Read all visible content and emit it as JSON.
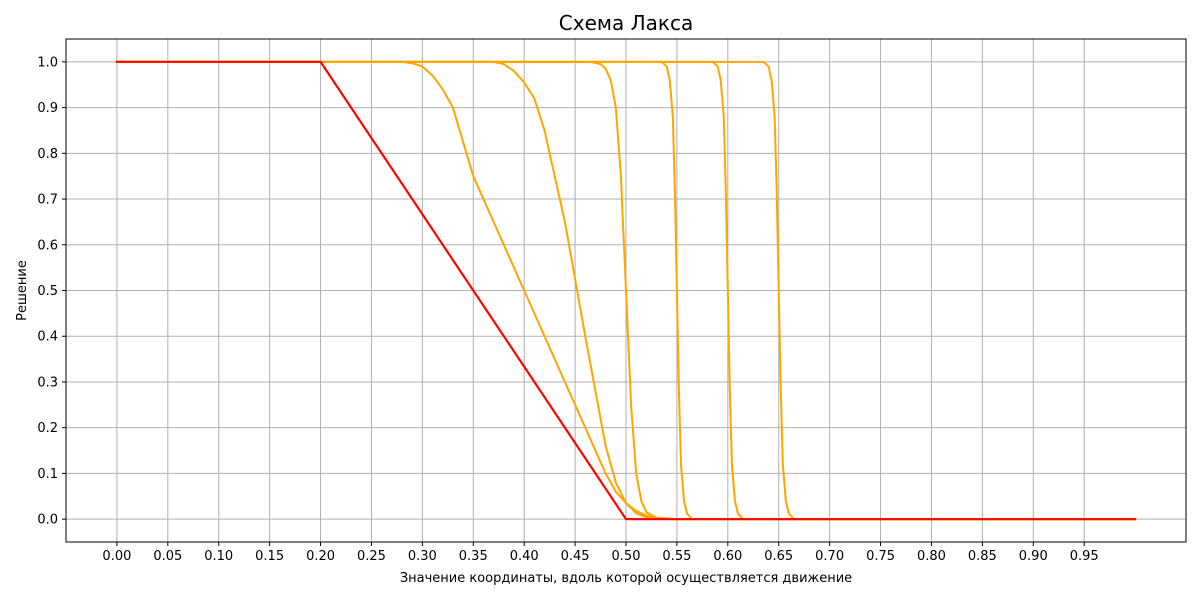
{
  "chart_data": {
    "type": "line",
    "title": "Схема Лакса",
    "xlabel": "Значение координаты, вдоль которой осуществляется движение",
    "ylabel": "Решение",
    "xlim": [
      -0.05,
      1.05
    ],
    "ylim": [
      -0.05,
      1.05
    ],
    "xticks": [
      0.0,
      0.05,
      0.1,
      0.15,
      0.2,
      0.25,
      0.3,
      0.35,
      0.4,
      0.45,
      0.5,
      0.55,
      0.6,
      0.65,
      0.7,
      0.75,
      0.8,
      0.85,
      0.9,
      0.95
    ],
    "xtick_labels": [
      "0.00",
      "0.05",
      "0.10",
      "0.15",
      "0.20",
      "0.25",
      "0.30",
      "0.35",
      "0.40",
      "0.45",
      "0.50",
      "0.55",
      "0.60",
      "0.65",
      "0.70",
      "0.75",
      "0.80",
      "0.85",
      "0.90",
      "0.95"
    ],
    "yticks": [
      0.0,
      0.1,
      0.2,
      0.3,
      0.4,
      0.5,
      0.6,
      0.7,
      0.8,
      0.9,
      1.0
    ],
    "ytick_labels": [
      "0.0",
      "0.1",
      "0.2",
      "0.3",
      "0.4",
      "0.5",
      "0.6",
      "0.7",
      "0.8",
      "0.9",
      "1.0"
    ],
    "grid": true,
    "legend": "none",
    "series": [
      {
        "color": "#ff0000",
        "x": [
          0.0,
          0.2,
          0.5,
          1.0
        ],
        "y": [
          1.0,
          1.0,
          0.0,
          0.0
        ]
      },
      {
        "color": "#ffa500",
        "x": [
          0.0,
          0.28,
          0.29,
          0.3,
          0.31,
          0.32,
          0.33,
          0.35,
          0.4,
          0.45,
          0.47,
          0.48,
          0.49,
          0.5,
          0.51,
          0.52,
          0.53,
          0.55,
          0.6,
          1.0
        ],
        "y": [
          1.0,
          1.0,
          0.997,
          0.99,
          0.97,
          0.94,
          0.9,
          0.75,
          0.5,
          0.25,
          0.15,
          0.1,
          0.06,
          0.035,
          0.018,
          0.008,
          0.003,
          0.0,
          0.0,
          0.0
        ]
      },
      {
        "color": "#ffa500",
        "x": [
          0.0,
          0.37,
          0.38,
          0.39,
          0.4,
          0.41,
          0.42,
          0.44,
          0.46,
          0.48,
          0.49,
          0.5,
          0.51,
          0.52,
          0.53,
          0.55,
          0.6,
          1.0
        ],
        "y": [
          1.0,
          1.0,
          0.995,
          0.98,
          0.955,
          0.92,
          0.85,
          0.65,
          0.4,
          0.16,
          0.08,
          0.035,
          0.013,
          0.004,
          0.001,
          0.0,
          0.0,
          1e-09
        ]
      },
      {
        "color": "#ffa500",
        "x": [
          0.0,
          0.465,
          0.475,
          0.48,
          0.485,
          0.49,
          0.495,
          0.5,
          0.505,
          0.51,
          0.515,
          0.52,
          0.53,
          0.54,
          0.6,
          1.0
        ],
        "y": [
          1.0,
          1.0,
          0.995,
          0.985,
          0.96,
          0.9,
          0.75,
          0.5,
          0.25,
          0.1,
          0.04,
          0.015,
          0.003,
          0.0,
          0.0,
          0.0
        ]
      },
      {
        "color": "#ffa500",
        "x": [
          0.0,
          0.535,
          0.54,
          0.543,
          0.546,
          0.548,
          0.55,
          0.552,
          0.554,
          0.557,
          0.56,
          0.565,
          0.6,
          1.0
        ],
        "y": [
          1.0,
          1.0,
          0.99,
          0.96,
          0.88,
          0.72,
          0.5,
          0.28,
          0.12,
          0.04,
          0.012,
          0.0,
          0.0,
          0.0
        ]
      },
      {
        "color": "#ffa500",
        "x": [
          0.0,
          0.585,
          0.59,
          0.593,
          0.596,
          0.598,
          0.6,
          0.602,
          0.604,
          0.607,
          0.61,
          0.615,
          0.65,
          1.0
        ],
        "y": [
          1.0,
          1.0,
          0.99,
          0.96,
          0.88,
          0.72,
          0.5,
          0.28,
          0.12,
          0.04,
          0.012,
          0.0,
          0.0,
          0.0
        ]
      },
      {
        "color": "#ffa500",
        "x": [
          0.0,
          0.635,
          0.64,
          0.643,
          0.646,
          0.648,
          0.65,
          0.652,
          0.654,
          0.657,
          0.66,
          0.665,
          0.7,
          1.0
        ],
        "y": [
          1.0,
          1.0,
          0.99,
          0.96,
          0.88,
          0.72,
          0.5,
          0.28,
          0.12,
          0.04,
          0.012,
          0.0,
          0.0,
          0.0
        ]
      },
      {
        "color": "#ff0000",
        "x": [
          0.0,
          0.2,
          0.5,
          1.0
        ],
        "y": [
          1.0,
          1.0,
          0.0,
          0.0
        ]
      }
    ]
  }
}
